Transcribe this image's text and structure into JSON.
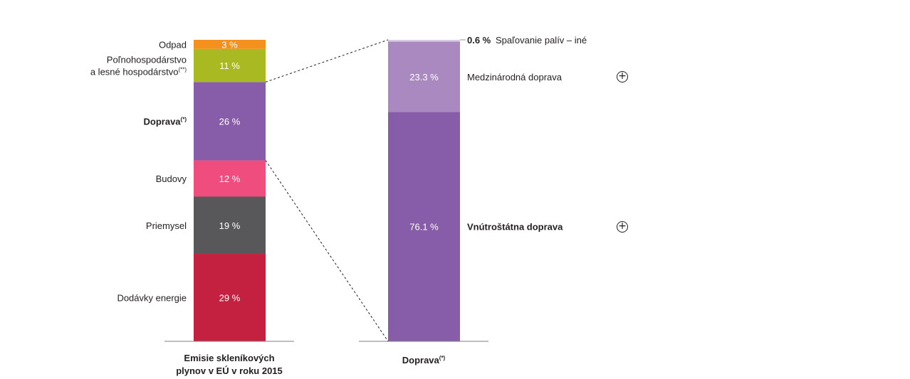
{
  "chart_data": [
    {
      "type": "bar",
      "stacked": true,
      "title": "",
      "xlabel": "Emisie skleníkových plynov v EÚ v roku 2015",
      "categories": [
        "Emisie skleníkových plynov v EÚ v roku 2015"
      ],
      "series": [
        {
          "name": "Dodávky energie",
          "value": 29,
          "label": "29 %",
          "color": "#c4203f"
        },
        {
          "name": "Priemysel",
          "value": 19,
          "label": "19 %",
          "color": "#58585a"
        },
        {
          "name": "Budovy",
          "value": 12,
          "label": "12 %",
          "color": "#ee4d7e"
        },
        {
          "name": "Doprava",
          "sup": "(*)",
          "bold": true,
          "value": 26,
          "label": "26 %",
          "color": "#875ca8"
        },
        {
          "name": "Poľnohospodárstvo\na lesné hospodárstvo",
          "sup": "(**)",
          "value": 11,
          "label": "11 %",
          "color": "#a9b921"
        },
        {
          "name": "Odpad",
          "value": 3,
          "label": "3 %",
          "color": "#f3901e"
        }
      ]
    },
    {
      "type": "bar",
      "stacked": true,
      "title": "",
      "xlabel": "Doprava",
      "xlabel_sup": "(*)",
      "categories": [
        "Doprava"
      ],
      "series": [
        {
          "name": "Vnútroštátna doprava",
          "bold": true,
          "value": 76.1,
          "label": "76.1 %",
          "color": "#875ca8",
          "expandable": true
        },
        {
          "name": "Medzinárodná doprava",
          "value": 23.3,
          "label": "23.3 %",
          "color": "#a989c0",
          "expandable": true
        },
        {
          "name": "Spaľovanie palív – iné",
          "value": 0.6,
          "label": "0.6 %",
          "color": "#d8cce4",
          "label_outside": true
        }
      ]
    }
  ],
  "icons": {
    "expand": "plus-circle-icon"
  }
}
